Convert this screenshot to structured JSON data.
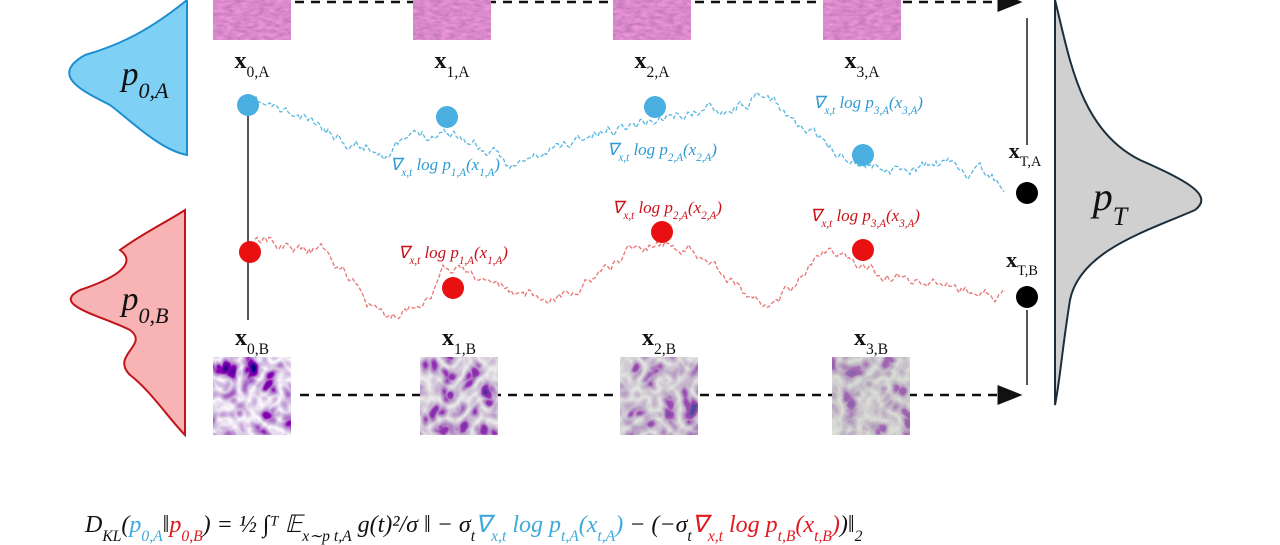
{
  "distributions": {
    "a": [
      {
        "t": "p",
        "s": "0,A"
      }
    ],
    "b": [
      {
        "t": "p",
        "s": "0,B"
      }
    ],
    "t": [
      {
        "t": "p",
        "s": "T"
      }
    ]
  },
  "images_a": [
    [
      {
        "t": "x",
        "s": "0,A"
      }
    ],
    [
      {
        "t": "x",
        "s": "1,A"
      }
    ],
    [
      {
        "t": "x",
        "s": "2,A"
      }
    ],
    [
      {
        "t": "x",
        "s": "3,A"
      }
    ]
  ],
  "images_b": [
    [
      {
        "t": "x",
        "s": "0,B"
      }
    ],
    [
      {
        "t": "x",
        "s": "1,B"
      }
    ],
    [
      {
        "t": "x",
        "s": "2,B"
      }
    ],
    [
      {
        "t": "x",
        "s": "3,B"
      }
    ]
  ],
  "terminal": {
    "a": [
      {
        "t": "x",
        "s": "T,A"
      }
    ],
    "b": [
      {
        "t": "x",
        "s": "T,B"
      }
    ]
  },
  "scores_a": [
    [
      {
        "t": "∇",
        "s": "x,t"
      },
      {
        "t": " log p",
        "s": "1,A"
      },
      {
        "t": "(x",
        "s": "1,A"
      },
      {
        "t": ")"
      }
    ],
    [
      {
        "t": "∇",
        "s": "x,t"
      },
      {
        "t": " log p",
        "s": "2,A"
      },
      {
        "t": "(x",
        "s": "2,A"
      },
      {
        "t": ")"
      }
    ],
    [
      {
        "t": "∇",
        "s": "x,t"
      },
      {
        "t": " log p",
        "s": "3,A"
      },
      {
        "t": "(x",
        "s": "3,A"
      },
      {
        "t": ")"
      }
    ]
  ],
  "scores_b": [
    [
      {
        "t": "∇",
        "s": "x,t"
      },
      {
        "t": " log p",
        "s": "1,A"
      },
      {
        "t": "(x",
        "s": "1,A"
      },
      {
        "t": ")"
      }
    ],
    [
      {
        "t": "∇",
        "s": "x,t"
      },
      {
        "t": " log p",
        "s": "2,A"
      },
      {
        "t": "(x",
        "s": "2,A"
      },
      {
        "t": ")"
      }
    ],
    [
      {
        "t": "∇",
        "s": "x,t"
      },
      {
        "t": " log p",
        "s": "3,A"
      },
      {
        "t": "(x",
        "s": "3,A"
      },
      {
        "t": ")"
      }
    ]
  ],
  "formula": [
    {
      "t": "D",
      "s": "KL"
    },
    {
      "t": "("
    },
    {
      "t": "p",
      "s": "0,A",
      "c": "#3fa9dc"
    },
    {
      "t": "‖"
    },
    {
      "t": "p",
      "s": "0,B",
      "c": "#e0191f"
    },
    {
      "t": ") = ½ ∫ᵀ 𝔼",
      "s": "x∼p t,A"
    },
    {
      "t": " g(t)²/σ ‖ − σ",
      "s": "t"
    },
    {
      "t": "∇",
      "s": "x,t",
      "c": "#3fa9dc"
    },
    {
      "t": " log p",
      "s": "t,A",
      "c": "#3fa9dc"
    },
    {
      "t": "(x",
      "s": "t,A",
      "c": "#3fa9dc"
    },
    {
      "t": ")",
      "c": "#3fa9dc"
    },
    {
      "t": " − (−σ",
      "s": "t"
    },
    {
      "t": "∇",
      "s": "x,t",
      "c": "#e0191f"
    },
    {
      "t": " log p",
      "s": "t,B",
      "c": "#e0191f"
    },
    {
      "t": "(x",
      "s": "t,B",
      "c": "#e0191f"
    },
    {
      "t": ")",
      "c": "#e0191f"
    },
    {
      "t": ")‖",
      "s": "2"
    }
  ]
}
